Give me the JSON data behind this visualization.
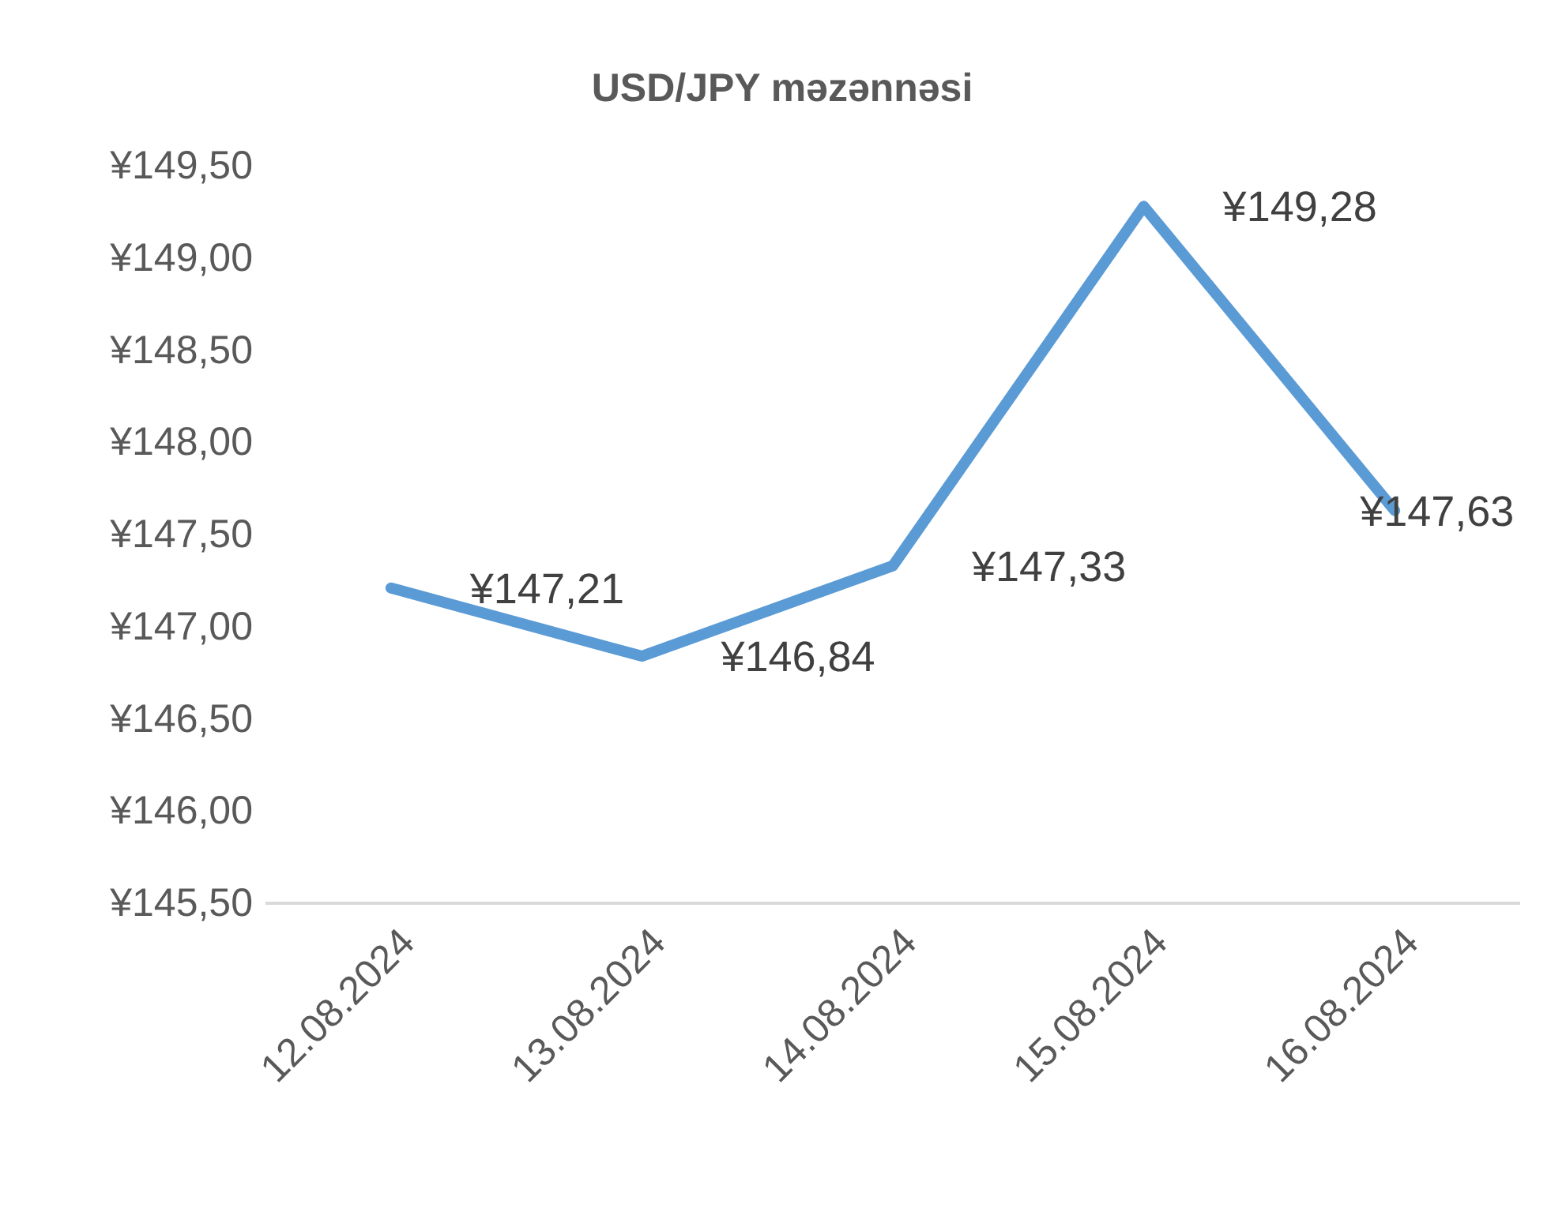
{
  "chart_data": {
    "type": "line",
    "title": "USD/JPY məzənnəsi",
    "categories": [
      "12.08.2024",
      "13.08.2024",
      "14.08.2024",
      "15.08.2024",
      "16.08.2024"
    ],
    "series": [
      {
        "color": "#5b9bd5",
        "values": [
          147.21,
          146.84,
          147.33,
          149.28,
          147.63
        ],
        "value_labels": [
          "¥147,21",
          "¥146,84",
          "¥147,33",
          "¥149,28",
          "¥147,63"
        ]
      }
    ],
    "ylim": [
      145.5,
      149.5
    ],
    "yticks": [
      {
        "value": 145.5,
        "label": "¥145,50"
      },
      {
        "value": 146,
        "label": "¥146,00"
      },
      {
        "value": 146.5,
        "label": "¥146,50"
      },
      {
        "value": 147,
        "label": "¥147,00"
      },
      {
        "value": 147.5,
        "label": "¥147,50"
      },
      {
        "value": 148,
        "label": "¥148,00"
      },
      {
        "value": 148.5,
        "label": "¥148,50"
      },
      {
        "value": 149,
        "label": "¥149,00"
      },
      {
        "value": 149.5,
        "label": "¥149,50"
      }
    ],
    "grid": false,
    "marker": "none",
    "line_style": "solid"
  }
}
